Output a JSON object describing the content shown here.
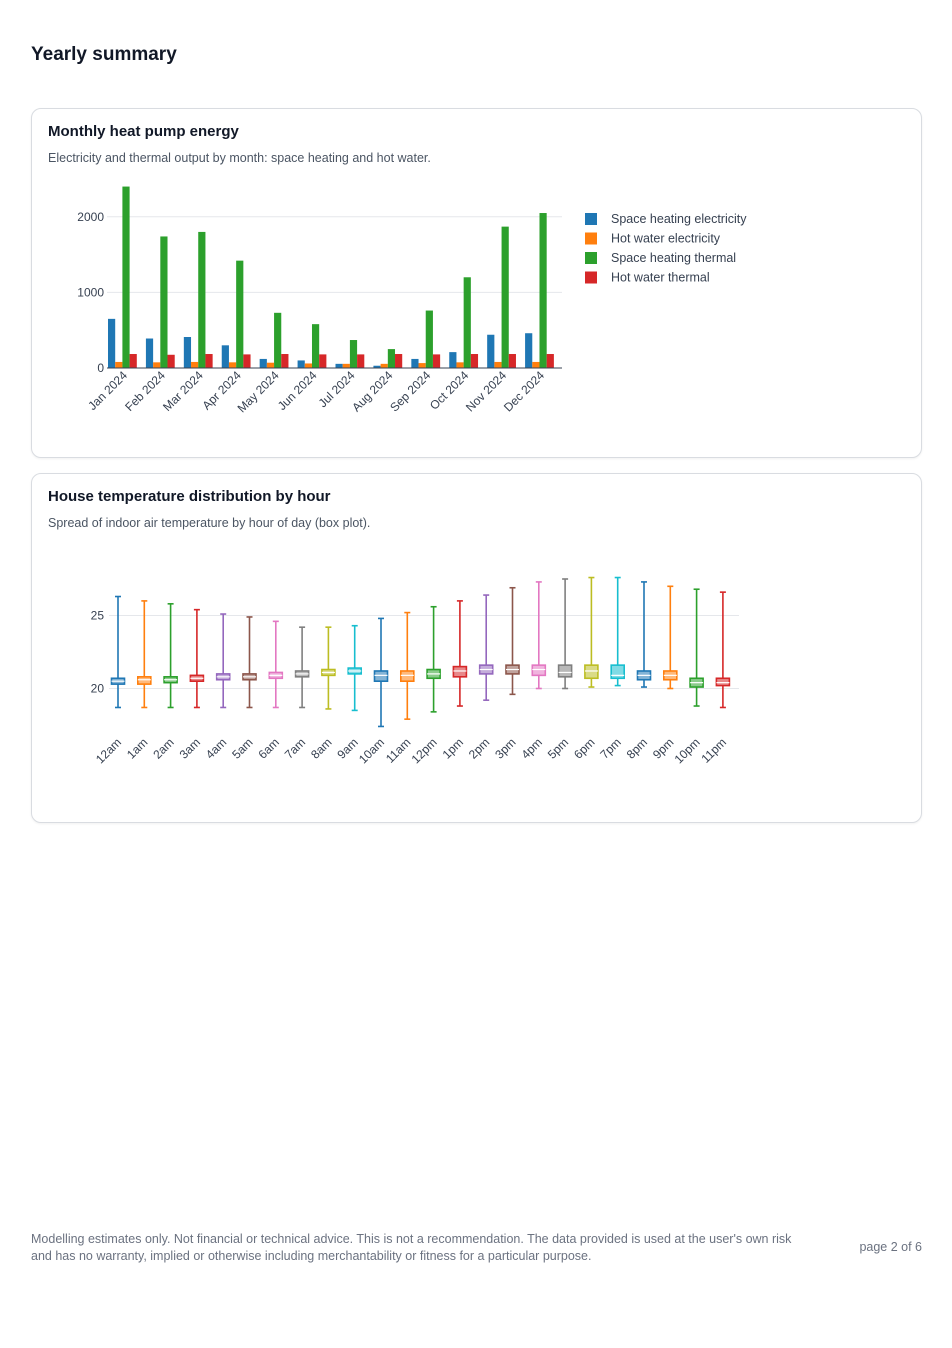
{
  "page": {
    "title": "Yearly summary",
    "footer_disclaimer": "Modelling estimates only. Not financial or technical advice. This is not a recommendation. The data provided is used at the user's own risk and has no warranty, implied or otherwise including merchantability or fitness for a particular purpose.",
    "page_number": "page 2 of 6"
  },
  "cards": [
    {
      "title": "Monthly heat pump energy",
      "subtitle": "Electricity and thermal output by month: space heating and hot water."
    },
    {
      "title": "House temperature distribution by hour",
      "subtitle": "Spread of indoor air temperature by hour of day (box plot)."
    }
  ],
  "chart_data": [
    {
      "type": "bar",
      "categories": [
        "Jan 2024",
        "Feb 2024",
        "Mar 2024",
        "Apr 2024",
        "May 2024",
        "Jun 2024",
        "Jul 2024",
        "Aug 2024",
        "Sep 2024",
        "Oct 2024",
        "Nov 2024",
        "Dec 2024"
      ],
      "ylim": [
        0,
        2500
      ],
      "yticks": [
        0,
        1000,
        2000
      ],
      "grid": true,
      "legend_position": "right",
      "series": [
        {
          "name": "Space heating electricity",
          "color": "#1f77b4",
          "values": [
            650,
            390,
            410,
            300,
            120,
            100,
            55,
            30,
            120,
            210,
            440,
            460
          ]
        },
        {
          "name": "Hot water electricity",
          "color": "#ff7f0e",
          "values": [
            80,
            75,
            80,
            75,
            70,
            60,
            55,
            55,
            65,
            75,
            80,
            80
          ]
        },
        {
          "name": "Space heating thermal",
          "color": "#2ca02c",
          "values": [
            2400,
            1740,
            1800,
            1420,
            730,
            580,
            370,
            250,
            760,
            1200,
            1870,
            2050
          ]
        },
        {
          "name": "Hot water thermal",
          "color": "#d62728",
          "values": [
            185,
            175,
            185,
            180,
            185,
            180,
            180,
            185,
            180,
            185,
            185,
            185
          ]
        }
      ]
    },
    {
      "type": "box",
      "categories": [
        "12am",
        "1am",
        "2am",
        "3am",
        "4am",
        "5am",
        "6am",
        "7am",
        "8am",
        "9am",
        "10am",
        "11am",
        "12pm",
        "1pm",
        "2pm",
        "3pm",
        "4pm",
        "5pm",
        "6pm",
        "7pm",
        "8pm",
        "9pm",
        "10pm",
        "11pm"
      ],
      "ylim": [
        17,
        29
      ],
      "yticks": [
        20,
        25
      ],
      "grid": true,
      "boxes": [
        {
          "min": 18.7,
          "q1": 20.3,
          "median": 20.5,
          "q3": 20.7,
          "max": 26.3,
          "color": "#1f77b4"
        },
        {
          "min": 18.7,
          "q1": 20.3,
          "median": 20.6,
          "q3": 20.8,
          "max": 26.0,
          "color": "#ff7f0e"
        },
        {
          "min": 18.7,
          "q1": 20.4,
          "median": 20.6,
          "q3": 20.8,
          "max": 25.8,
          "color": "#2ca02c"
        },
        {
          "min": 18.7,
          "q1": 20.5,
          "median": 20.7,
          "q3": 20.9,
          "max": 25.4,
          "color": "#d62728"
        },
        {
          "min": 18.7,
          "q1": 20.6,
          "median": 20.8,
          "q3": 21.0,
          "max": 25.1,
          "color": "#9467bd"
        },
        {
          "min": 18.7,
          "q1": 20.6,
          "median": 20.8,
          "q3": 21.0,
          "max": 24.9,
          "color": "#8c564b"
        },
        {
          "min": 18.7,
          "q1": 20.7,
          "median": 20.9,
          "q3": 21.1,
          "max": 24.6,
          "color": "#e377c2"
        },
        {
          "min": 18.7,
          "q1": 20.8,
          "median": 21.0,
          "q3": 21.2,
          "max": 24.2,
          "color": "#7f7f7f"
        },
        {
          "min": 18.6,
          "q1": 20.9,
          "median": 21.1,
          "q3": 21.3,
          "max": 24.2,
          "color": "#bcbd22"
        },
        {
          "min": 18.5,
          "q1": 21.0,
          "median": 21.2,
          "q3": 21.4,
          "max": 24.3,
          "color": "#17becf"
        },
        {
          "min": 17.4,
          "q1": 20.5,
          "median": 20.9,
          "q3": 21.2,
          "max": 24.8,
          "color": "#1f77b4"
        },
        {
          "min": 17.9,
          "q1": 20.5,
          "median": 20.9,
          "q3": 21.2,
          "max": 25.2,
          "color": "#ff7f0e"
        },
        {
          "min": 18.4,
          "q1": 20.7,
          "median": 21.0,
          "q3": 21.3,
          "max": 25.6,
          "color": "#2ca02c"
        },
        {
          "min": 18.8,
          "q1": 20.8,
          "median": 21.2,
          "q3": 21.5,
          "max": 26.0,
          "color": "#d62728"
        },
        {
          "min": 19.2,
          "q1": 21.0,
          "median": 21.3,
          "q3": 21.6,
          "max": 26.4,
          "color": "#9467bd"
        },
        {
          "min": 19.6,
          "q1": 21.0,
          "median": 21.3,
          "q3": 21.6,
          "max": 26.9,
          "color": "#8c564b"
        },
        {
          "min": 20.0,
          "q1": 20.9,
          "median": 21.3,
          "q3": 21.6,
          "max": 27.3,
          "color": "#e377c2"
        },
        {
          "min": 20.0,
          "q1": 20.8,
          "median": 21.1,
          "q3": 21.6,
          "max": 27.5,
          "color": "#7f7f7f"
        },
        {
          "min": 20.1,
          "q1": 20.7,
          "median": 21.2,
          "q3": 21.6,
          "max": 27.6,
          "color": "#bcbd22"
        },
        {
          "min": 20.2,
          "q1": 20.7,
          "median": 20.9,
          "q3": 21.6,
          "max": 27.6,
          "color": "#17becf"
        },
        {
          "min": 20.1,
          "q1": 20.6,
          "median": 20.9,
          "q3": 21.2,
          "max": 27.3,
          "color": "#1f77b4"
        },
        {
          "min": 20.0,
          "q1": 20.6,
          "median": 20.9,
          "q3": 21.2,
          "max": 27.0,
          "color": "#ff7f0e"
        },
        {
          "min": 18.8,
          "q1": 20.1,
          "median": 20.4,
          "q3": 20.7,
          "max": 26.8,
          "color": "#2ca02c"
        },
        {
          "min": 18.7,
          "q1": 20.2,
          "median": 20.4,
          "q3": 20.7,
          "max": 26.6,
          "color": "#d62728"
        }
      ]
    }
  ]
}
